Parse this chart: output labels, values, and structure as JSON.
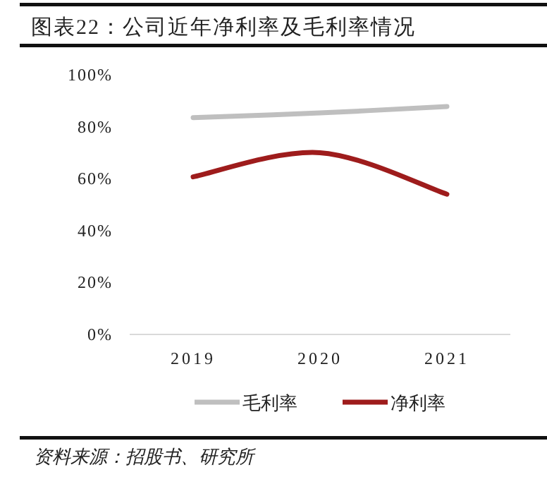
{
  "chart_data": {
    "type": "line",
    "title": "图表22：公司近年净利率及毛利率情况",
    "categories": [
      "2019",
      "2020",
      "2021"
    ],
    "series": [
      {
        "name": "毛利率",
        "color": "#bfbfbf",
        "values": [
          83.5,
          85.3,
          87.8
        ]
      },
      {
        "name": "净利率",
        "color": "#9e1c1c",
        "values": [
          60.7,
          70,
          54
        ]
      }
    ],
    "ylim": [
      0,
      100
    ],
    "yticks": [
      {
        "value": 0,
        "label": "0%"
      },
      {
        "value": 20,
        "label": "20%"
      },
      {
        "value": 40,
        "label": "40%"
      },
      {
        "value": 60,
        "label": "60%"
      },
      {
        "value": 80,
        "label": "80%"
      },
      {
        "value": 100,
        "label": "100%"
      }
    ],
    "grid": false,
    "legend": "bottom",
    "marker": "none",
    "line_style": "solid",
    "annotations": [
      "资料来源：招股书、研究所"
    ]
  }
}
